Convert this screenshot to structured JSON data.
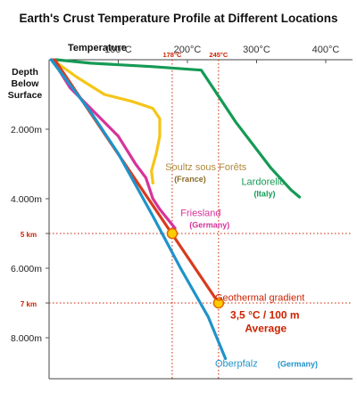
{
  "chart_data": {
    "type": "line",
    "title": "Earth's Crust Temperature Profile at Different Locations",
    "xlabel": "Temperature",
    "ylabel": "Depth Below Surface",
    "ylabel_lines": [
      "Depth",
      "Below",
      "Surface"
    ],
    "x_unit": "°C",
    "y_unit": "m",
    "xlim": [
      0,
      400
    ],
    "ylim": [
      0,
      9000
    ],
    "x_ticks": [
      {
        "value": 100,
        "label": "100°C"
      },
      {
        "value": 200,
        "label": "200°C"
      },
      {
        "value": 300,
        "label": "300°C"
      },
      {
        "value": 400,
        "label": "400°C"
      }
    ],
    "y_ticks": [
      {
        "value": 2000,
        "label": "2.000m",
        "color": "#222222"
      },
      {
        "value": 4000,
        "label": "4.000m",
        "color": "#222222"
      },
      {
        "value": 5000,
        "label": "5 km",
        "color": "#cc2200"
      },
      {
        "value": 6000,
        "label": "6.000m",
        "color": "#222222"
      },
      {
        "value": 7000,
        "label": "7 km",
        "color": "#cc2200"
      },
      {
        "value": 8000,
        "label": "8.000m",
        "color": "#222222"
      }
    ],
    "grid": false,
    "reference_lines": [
      {
        "axis": "x",
        "value": 178,
        "label": "178°C",
        "color": "#cc2200"
      },
      {
        "axis": "x",
        "value": 245,
        "label": "245°C",
        "color": "#cc2200"
      },
      {
        "axis": "y",
        "value": 5000,
        "color": "#cc2200"
      },
      {
        "axis": "y",
        "value": 7000,
        "color": "#cc2200"
      }
    ],
    "highlight_points": [
      {
        "x": 178,
        "y": 5000,
        "color": "#ffcc00"
      },
      {
        "x": 245,
        "y": 7000,
        "color": "#ffcc00"
      }
    ],
    "series": [
      {
        "name": "Lardorello",
        "sub": "(Italy)",
        "color": "#159a55",
        "label_xy": [
          278,
          3600
        ],
        "points": [
          [
            10,
            0
          ],
          [
            60,
            100
          ],
          [
            150,
            200
          ],
          [
            220,
            300
          ],
          [
            270,
            1800
          ],
          [
            320,
            3100
          ],
          [
            350,
            3750
          ],
          [
            362,
            3950
          ]
        ]
      },
      {
        "name": "Soultz sous Forêts",
        "sub": "(France)",
        "color": "#f5c518",
        "label_xy": [
          168,
          3180
        ],
        "points": [
          [
            5,
            0
          ],
          [
            40,
            500
          ],
          [
            80,
            1000
          ],
          [
            120,
            1200
          ],
          [
            150,
            1400
          ],
          [
            160,
            1700
          ],
          [
            160,
            2200
          ],
          [
            155,
            2700
          ],
          [
            148,
            3200
          ],
          [
            150,
            3550
          ]
        ]
      },
      {
        "name": "Friesland",
        "sub": "(Germany)",
        "color": "#d6339a",
        "label_xy": [
          190,
          4500
        ],
        "points": [
          [
            5,
            0
          ],
          [
            30,
            800
          ],
          [
            70,
            1600
          ],
          [
            100,
            2200
          ],
          [
            125,
            3000
          ],
          [
            140,
            3400
          ],
          [
            150,
            4000
          ],
          [
            160,
            4300
          ],
          [
            172,
            4600
          ],
          [
            182,
            4850
          ]
        ]
      },
      {
        "name": "Geothermal gradient",
        "sub": "",
        "color": "#d93a1f",
        "label_xy": [
          240,
          6930
        ],
        "points": [
          [
            8,
            0
          ],
          [
            245,
            7000
          ]
        ]
      },
      {
        "name": "Oberpfalz",
        "sub": "(Germany)",
        "color": "#1f93c9",
        "label_xy": [
          240,
          8830
        ],
        "points": [
          [
            3,
            0
          ],
          [
            60,
            1500
          ],
          [
            100,
            2700
          ],
          [
            150,
            4500
          ],
          [
            190,
            6000
          ],
          [
            230,
            7400
          ],
          [
            255,
            8600
          ]
        ]
      }
    ],
    "annotations": [
      {
        "text": "3,5 °C / 100 m",
        "color": "#cc2200",
        "x": 262,
        "y": 7450
      },
      {
        "text": "Average",
        "color": "#cc2200",
        "x": 283,
        "y": 7830
      }
    ]
  }
}
